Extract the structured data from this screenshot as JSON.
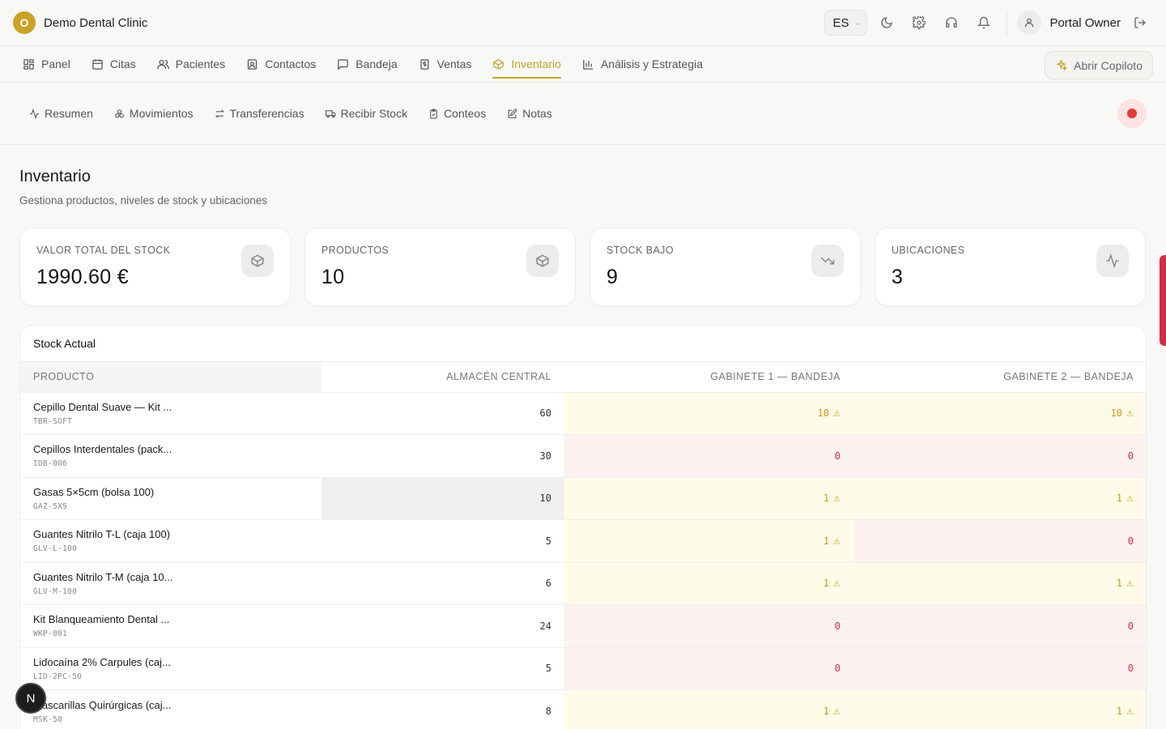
{
  "app": {
    "logo_letter": "O",
    "clinic_name": "Demo Dental Clinic",
    "language": "ES",
    "user_name": "Portal Owner",
    "accent_color": "#c9a227"
  },
  "main_nav": {
    "items": [
      {
        "label": "Panel",
        "icon": "dashboard-icon"
      },
      {
        "label": "Citas",
        "icon": "calendar-icon"
      },
      {
        "label": "Pacientes",
        "icon": "users-icon"
      },
      {
        "label": "Contactos",
        "icon": "contact-icon"
      },
      {
        "label": "Bandeja",
        "icon": "message-icon"
      },
      {
        "label": "Ventas",
        "icon": "receipt-icon"
      },
      {
        "label": "Inventario",
        "icon": "package-icon",
        "active": true
      },
      {
        "label": "Análisis y Estrategia",
        "icon": "bar-chart-icon"
      }
    ],
    "copilot_label": "Abrir Copiloto"
  },
  "sub_nav": {
    "items": [
      {
        "label": "Resumen",
        "icon": "activity-icon"
      },
      {
        "label": "Movimientos",
        "icon": "boxes-icon"
      },
      {
        "label": "Transferencias",
        "icon": "arrows-icon"
      },
      {
        "label": "Recibir Stock",
        "icon": "truck-icon"
      },
      {
        "label": "Conteos",
        "icon": "clipboard-check-icon"
      },
      {
        "label": "Notas",
        "icon": "edit-note-icon"
      }
    ]
  },
  "page": {
    "title": "Inventario",
    "subtitle": "Gestiona productos, niveles de stock y ubicaciones"
  },
  "stats": [
    {
      "label": "VALOR TOTAL DEL STOCK",
      "value": "1990.60 €",
      "icon": "package-icon"
    },
    {
      "label": "PRODUCTOS",
      "value": "10",
      "icon": "package-icon"
    },
    {
      "label": "STOCK BAJO",
      "value": "9",
      "icon": "trending-down-icon"
    },
    {
      "label": "UBICACIONES",
      "value": "3",
      "icon": "activity-icon"
    }
  ],
  "stock_table": {
    "title": "Stock Actual",
    "columns": [
      "PRODUCTO",
      "ALMACÉN CENTRAL",
      "GABINETE 1 — BANDEJA",
      "GABINETE 2 — BANDEJA"
    ],
    "rows": [
      {
        "name": "Cepillo Dental Suave — Kit ...",
        "sku": "TBR-SOFT",
        "central": "60",
        "g1": "10",
        "g1_status": "low",
        "g2": "10",
        "g2_status": "low"
      },
      {
        "name": "Cepillos Interdentales (pack...",
        "sku": "IDB-006",
        "central": "30",
        "g1": "0",
        "g1_status": "zero",
        "g2": "0",
        "g2_status": "zero"
      },
      {
        "name": "Gasas 5×5cm (bolsa 100)",
        "sku": "GAZ-5X5",
        "central": "10",
        "central_hl": true,
        "g1": "1",
        "g1_status": "low",
        "g2": "1",
        "g2_status": "low"
      },
      {
        "name": "Guantes Nitrilo T-L (caja 100)",
        "sku": "GLV-L-100",
        "central": "5",
        "g1": "1",
        "g1_status": "low",
        "g2": "0",
        "g2_status": "zero"
      },
      {
        "name": "Guantes Nitrilo T-M (caja 10...",
        "sku": "GLV-M-100",
        "central": "6",
        "g1": "1",
        "g1_status": "low",
        "g2": "1",
        "g2_status": "low"
      },
      {
        "name": "Kit Blanqueamiento Dental ...",
        "sku": "WKP-001",
        "central": "24",
        "g1": "0",
        "g1_status": "zero",
        "g2": "0",
        "g2_status": "zero"
      },
      {
        "name": "Lidocaína 2% Carpules (caj...",
        "sku": "LID-2PC-50",
        "central": "5",
        "g1": "0",
        "g1_status": "zero",
        "g2": "0",
        "g2_status": "zero"
      },
      {
        "name": "Mascarillas Quirúrgicas (caj...",
        "sku": "MSK-50",
        "central": "8",
        "g1": "1",
        "g1_status": "low",
        "g2": "1",
        "g2_status": "low"
      }
    ]
  },
  "floating": {
    "badge_letter": "N"
  },
  "colors": {
    "low_bg": "#fefce8",
    "low_text": "#d99413",
    "zero_bg": "#fdf1f1",
    "zero_text": "#d8323c"
  }
}
